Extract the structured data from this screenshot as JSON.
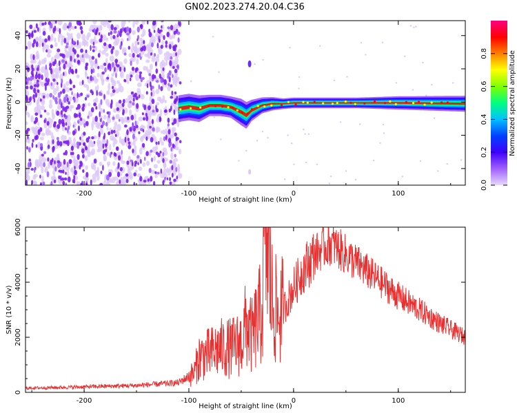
{
  "title": "GN02.2023.274.20.04.C36",
  "colors": {
    "snr_line": "#e83030",
    "axis": "#000000",
    "noise_dots": "#7a1ef0",
    "noise_haze": "#dcc8f8"
  },
  "colormap": [
    "#e8d8ff",
    "#a060ff",
    "#4000ff",
    "#0040ff",
    "#00c0ff",
    "#00ff80",
    "#80ff00",
    "#ffff00",
    "#ff8000",
    "#ff0000",
    "#ff0080"
  ],
  "chart_data": [
    {
      "type": "heatmap",
      "title": "GN02.2023.274.20.04.C36",
      "xlabel": "Height of straight line (km)",
      "ylabel": "Frequency (Hz)",
      "xlim": [
        -256,
        164
      ],
      "ylim": [
        -50,
        49
      ],
      "x_ticks": [
        -200,
        -100,
        0,
        100
      ],
      "y_ticks": [
        -40,
        -20,
        0,
        20,
        40
      ],
      "noise_region_x": [
        -256,
        -108
      ],
      "ridge": {
        "x": [
          -110,
          -100,
          -90,
          -80,
          -70,
          -60,
          -50,
          -45,
          -40,
          -30,
          -20,
          -10,
          0,
          20,
          60,
          100,
          164
        ],
        "frequency": [
          -4,
          -3,
          -4,
          -2,
          -2,
          -3,
          -6,
          -8,
          -5,
          -2,
          -1,
          -1,
          -0.5,
          -0.5,
          -0.5,
          -0.5,
          -1
        ],
        "halfwidth": [
          5,
          5,
          5,
          4,
          4,
          4,
          5,
          5,
          4,
          3,
          2.5,
          2,
          2,
          2,
          2,
          2.5,
          3
        ]
      },
      "colorbar": {
        "label": "Normalized spectral amplitude",
        "range": [
          0,
          1
        ],
        "ticks": [
          "0.0",
          "0.2",
          "0.4",
          "0.6",
          "0.8"
        ]
      }
    },
    {
      "type": "line",
      "xlabel": "Height of straight line (km)",
      "ylabel": "SNR (10 * v/v)",
      "xlim": [
        -256,
        164
      ],
      "ylim": [
        0,
        6000
      ],
      "x_ticks": [
        -200,
        -100,
        0,
        100
      ],
      "y_ticks": [
        0,
        2000,
        4000,
        6000
      ],
      "series": [
        {
          "x": [
            -256,
            -200,
            -150,
            -110,
            -95,
            -90,
            -80,
            -70,
            -60,
            -50,
            -45,
            -40,
            -30,
            -27,
            -20,
            -15,
            -10,
            0,
            10,
            20,
            30,
            35,
            40,
            50,
            60,
            80,
            100,
            120,
            140,
            164
          ],
          "values": [
            150,
            200,
            250,
            350,
            700,
            1300,
            1400,
            1600,
            1600,
            1800,
            2500,
            2000,
            3000,
            6000,
            3200,
            2800,
            3000,
            3800,
            4500,
            5000,
            5300,
            5400,
            5300,
            5000,
            4700,
            4100,
            3500,
            3000,
            2500,
            2000
          ]
        }
      ]
    }
  ]
}
